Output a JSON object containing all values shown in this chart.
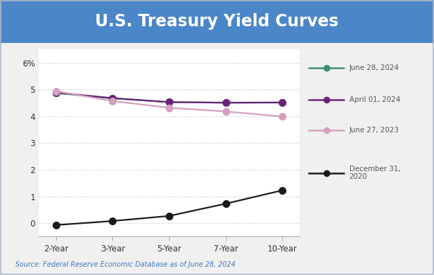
{
  "title": "U.S. Treasury Yield Curves",
  "title_bg_color": "#4a86c8",
  "title_text_color": "#ffffff",
  "source_text": "Source: Federal Reserve Economic Database as of June 28, 2024",
  "x_labels": [
    "2-Year",
    "3-Year",
    "5-Year",
    "7-Year",
    "10-Year"
  ],
  "x_values": [
    0,
    1,
    2,
    3,
    4
  ],
  "series": [
    {
      "label": "June 28, 2024",
      "color": "#3a8f6f",
      "data": [
        4.87,
        4.67,
        4.53,
        4.51,
        4.51
      ]
    },
    {
      "label": "April 01, 2024",
      "color": "#6b2377",
      "data": [
        4.89,
        4.68,
        4.53,
        4.51,
        4.52
      ]
    },
    {
      "label": "June 27, 2023",
      "color": "#d4a0be",
      "data": [
        4.94,
        4.57,
        4.32,
        4.18,
        3.99
      ]
    },
    {
      "label": "December 31,\n2020",
      "color": "#1a1a1a",
      "data": [
        -0.07,
        0.08,
        0.27,
        0.73,
        1.23
      ]
    }
  ],
  "ylim": [
    -0.5,
    6.5
  ],
  "yticks": [
    0,
    1,
    2,
    3,
    4,
    5,
    6
  ],
  "ytick_labels": [
    "0",
    "1",
    "2",
    "3",
    "4",
    "5",
    "6%"
  ],
  "outer_bg_color": "#f0f0f0",
  "plot_bg_color": "#ffffff",
  "grid_color": "#c8c8d0",
  "marker_size": 7,
  "line_width": 1.6,
  "border_color": "#b0b8c8"
}
